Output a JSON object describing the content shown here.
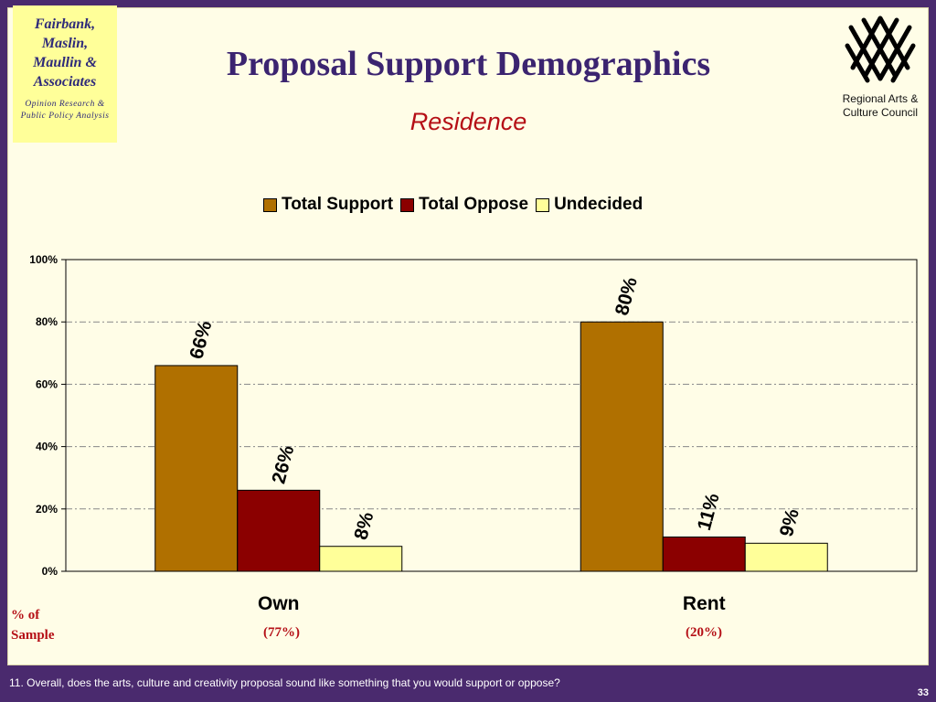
{
  "header": {
    "firm_name": "Fairbank,\nMaslin,\nMaullin &\nAssociates",
    "firm_tagline": "Opinion Research &\nPublic Policy Analysis",
    "title": "Proposal Support Demographics",
    "subtitle": "Residence",
    "council_name": "Regional Arts &\nCulture Council",
    "council_logo_icon": "woven-lattice-logo-icon"
  },
  "chart_data": {
    "type": "bar",
    "categories": [
      "Own",
      "Rent"
    ],
    "series": [
      {
        "name": "Total Support",
        "color": "#b07000",
        "values": [
          66,
          80
        ],
        "labels": [
          "66%",
          "80%"
        ]
      },
      {
        "name": "Total Oppose",
        "color": "#8b0000",
        "values": [
          26,
          11
        ],
        "labels": [
          "26%",
          "11%"
        ]
      },
      {
        "name": "Undecided",
        "color": "#ffff99",
        "values": [
          8,
          9
        ],
        "labels": [
          "8%",
          "9%"
        ]
      }
    ],
    "ylim": [
      0,
      100
    ],
    "yticks": [
      0,
      20,
      40,
      60,
      80,
      100
    ],
    "ytick_labels": [
      "0%",
      "20%",
      "40%",
      "60%",
      "80%",
      "100%"
    ],
    "grid": true,
    "legend": "top-center",
    "data_label_rotation": "vertical"
  },
  "sample": {
    "label": "% of\nSample",
    "values": [
      "(77%)",
      "(20%)"
    ]
  },
  "footer": {
    "question": "11. Overall, does the arts, culture and creativity proposal sound like something that you would support or oppose?",
    "page_number": "33"
  }
}
